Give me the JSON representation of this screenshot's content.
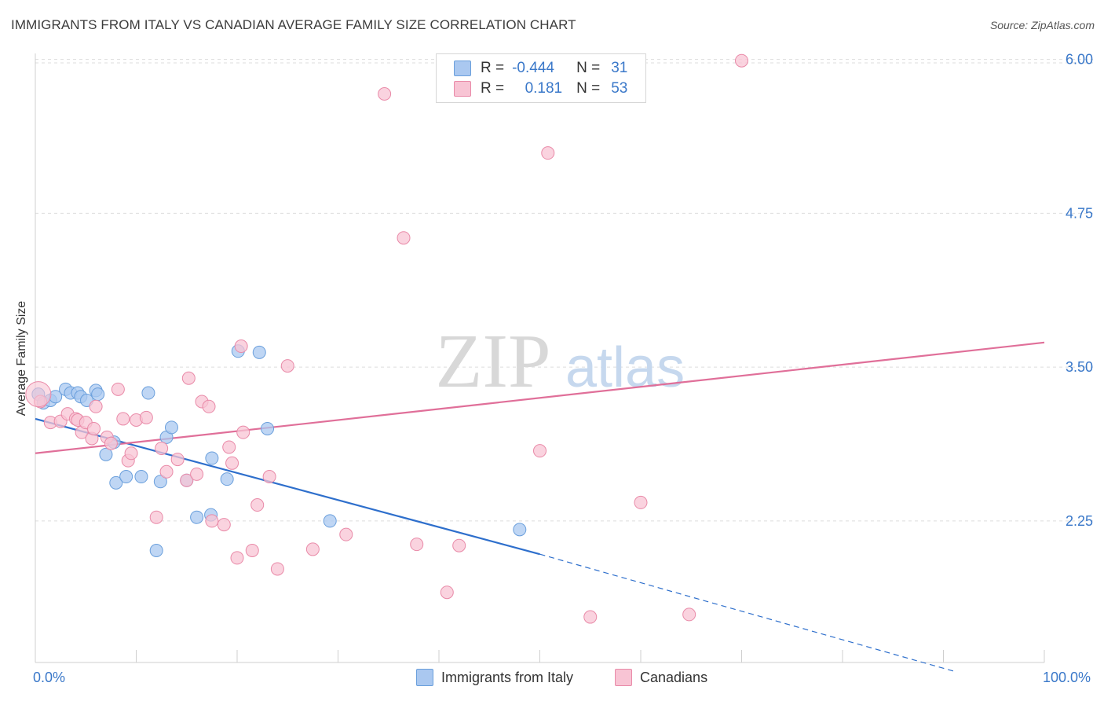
{
  "title": "IMMIGRANTS FROM ITALY VS CANADIAN AVERAGE FAMILY SIZE CORRELATION CHART",
  "source": "Source: ZipAtlas.com",
  "watermark": {
    "zip": "ZIP",
    "atlas": "atlas"
  },
  "legend": {
    "rows": [
      {
        "r_label": "R =",
        "r_value": "-0.444",
        "n_label": "N =",
        "n_value": "31"
      },
      {
        "r_label": "R =",
        "r_value": "0.181",
        "n_label": "N =",
        "n_value": "53"
      }
    ]
  },
  "bottom_legend": [
    "Immigrants from Italy",
    "Canadians"
  ],
  "x_labels": {
    "min": "0.0%",
    "max": "100.0%"
  },
  "colors": {
    "italy_fill": "#aac8f0",
    "italy_stroke": "#6a9fdc",
    "italy_line": "#2e6fcc",
    "canada_fill": "#f8c4d4",
    "canada_stroke": "#e98aa8",
    "canada_line": "#e06f99",
    "tick_text": "#3a78c9",
    "grid": "#dddddd"
  },
  "chart_data": {
    "type": "scatter",
    "title": "IMMIGRANTS FROM ITALY VS CANADIAN AVERAGE FAMILY SIZE CORRELATION CHART",
    "xlabel": "",
    "ylabel": "Average Family Size",
    "xlim": [
      0,
      100
    ],
    "ylim": [
      1.2,
      6.1
    ],
    "y_ticks": [
      2.25,
      3.5,
      4.75,
      6.0
    ],
    "y_tick_labels": [
      "2.25",
      "3.50",
      "4.75",
      "6.00"
    ],
    "grid": true,
    "series": [
      {
        "name": "Immigrants from Italy",
        "r": -0.444,
        "n": 31,
        "points": [
          [
            0.3,
            3.28
          ],
          [
            0.8,
            3.21
          ],
          [
            1.5,
            3.23
          ],
          [
            2.0,
            3.26
          ],
          [
            3.0,
            3.32
          ],
          [
            3.5,
            3.29
          ],
          [
            4.2,
            3.29
          ],
          [
            4.5,
            3.26
          ],
          [
            5.1,
            3.23
          ],
          [
            6.0,
            3.31
          ],
          [
            6.2,
            3.28
          ],
          [
            7.0,
            2.79
          ],
          [
            7.8,
            2.89
          ],
          [
            8.0,
            2.56
          ],
          [
            9.0,
            2.61
          ],
          [
            10.5,
            2.61
          ],
          [
            11.2,
            3.29
          ],
          [
            12.0,
            2.01
          ],
          [
            12.4,
            2.57
          ],
          [
            13.0,
            2.93
          ],
          [
            13.5,
            3.01
          ],
          [
            15.0,
            2.58
          ],
          [
            16.0,
            2.28
          ],
          [
            17.4,
            2.3
          ],
          [
            17.5,
            2.76
          ],
          [
            19.0,
            2.59
          ],
          [
            20.1,
            3.63
          ],
          [
            22.2,
            3.62
          ],
          [
            23.0,
            3.0
          ],
          [
            29.2,
            2.25
          ],
          [
            48.0,
            2.18
          ]
        ],
        "trend": {
          "x": [
            0,
            50
          ],
          "y": [
            3.08,
            1.98
          ]
        },
        "trend_dashed": {
          "x": [
            50,
            91
          ],
          "y": [
            1.98,
            1.03
          ]
        }
      },
      {
        "name": "Canadians",
        "r": 0.181,
        "n": 53,
        "points": [
          [
            0.5,
            3.22
          ],
          [
            1.5,
            3.05
          ],
          [
            2.5,
            3.06
          ],
          [
            3.2,
            3.12
          ],
          [
            4.0,
            3.08
          ],
          [
            4.2,
            3.07
          ],
          [
            4.6,
            2.97
          ],
          [
            5.0,
            3.05
          ],
          [
            5.6,
            2.92
          ],
          [
            5.8,
            3.0
          ],
          [
            6.0,
            3.18
          ],
          [
            7.1,
            2.93
          ],
          [
            7.5,
            2.88
          ],
          [
            8.2,
            3.32
          ],
          [
            8.7,
            3.08
          ],
          [
            9.2,
            2.74
          ],
          [
            9.5,
            2.8
          ],
          [
            10.0,
            3.07
          ],
          [
            11.0,
            3.09
          ],
          [
            12.0,
            2.28
          ],
          [
            12.5,
            2.84
          ],
          [
            13.0,
            2.65
          ],
          [
            14.1,
            2.75
          ],
          [
            15.0,
            2.58
          ],
          [
            15.2,
            3.41
          ],
          [
            16.0,
            2.63
          ],
          [
            16.5,
            3.22
          ],
          [
            17.2,
            3.18
          ],
          [
            17.5,
            2.25
          ],
          [
            18.7,
            2.22
          ],
          [
            19.2,
            2.85
          ],
          [
            19.5,
            2.72
          ],
          [
            20.0,
            1.95
          ],
          [
            20.4,
            3.67
          ],
          [
            20.6,
            2.97
          ],
          [
            21.5,
            2.01
          ],
          [
            22.0,
            2.38
          ],
          [
            23.2,
            2.61
          ],
          [
            24.0,
            1.86
          ],
          [
            25.0,
            3.51
          ],
          [
            27.5,
            2.02
          ],
          [
            30.8,
            2.14
          ],
          [
            34.6,
            5.72
          ],
          [
            36.5,
            4.55
          ],
          [
            37.8,
            2.06
          ],
          [
            40.8,
            1.67
          ],
          [
            50.0,
            2.82
          ],
          [
            50.8,
            5.24
          ],
          [
            60.0,
            2.4
          ],
          [
            55.0,
            1.47
          ],
          [
            64.8,
            1.49
          ],
          [
            70.0,
            5.99
          ],
          [
            42.0,
            2.05
          ]
        ],
        "trend": {
          "x": [
            0,
            100
          ],
          "y": [
            2.8,
            3.7
          ]
        }
      }
    ]
  }
}
